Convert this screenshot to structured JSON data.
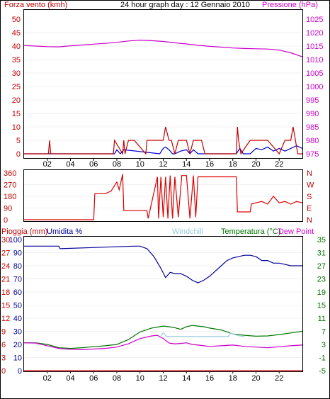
{
  "colors": {
    "background": "#ffffff",
    "border": "#000000",
    "grid": "#e4e4e4",
    "wind": "#c00000",
    "pressure": "#cc00cc",
    "direction": "#dd0000",
    "humidity": "#000099",
    "windchill": "#99ccdd",
    "temperature": "#007700",
    "dewpoint": "#cc00cc",
    "rain": "#cc0000",
    "gust": "#0000cc"
  },
  "header": {
    "wind_label": "Forza vento (kmh)",
    "title": "24 hour graph day : 12 Gennaio 2010",
    "pressure_label": "Pressione (hPa)"
  },
  "lower_header": {
    "rain_label": "Pioggia (mm)",
    "humidity_label": "Umidita %",
    "windchill_label": "Windchill",
    "temperature_label": "Temperatura (°C)",
    "dewpoint_label": "Dew Point"
  },
  "chart_data": [
    {
      "type": "line",
      "name": "wind-pressure",
      "x_ticks": [
        "02",
        "04",
        "06",
        "08",
        "10",
        "12",
        "14",
        "16",
        "18",
        "20",
        "22"
      ],
      "left_axis": {
        "label": "Forza vento (kmh)",
        "ticks": [
          "0",
          "5",
          "10",
          "15",
          "20",
          "25",
          "30",
          "35",
          "40",
          "45",
          "50"
        ],
        "ylim": [
          0,
          50
        ]
      },
      "right_axis": {
        "label": "Pressione (hPa)",
        "ticks": [
          "975",
          "980",
          "985",
          "990",
          "995",
          "1000",
          "1005",
          "1010",
          "1015",
          "1020",
          "1025"
        ],
        "ylim": [
          975,
          1025
        ]
      },
      "pressure": {
        "x": [
          0,
          1,
          2,
          3,
          4,
          5,
          6,
          7,
          8,
          9,
          10,
          11,
          12,
          13,
          14,
          15,
          16,
          17,
          18,
          19,
          20,
          21,
          22,
          23,
          24
        ],
        "y": [
          1015.2,
          1015.0,
          1014.8,
          1014.7,
          1015.1,
          1015.4,
          1015.7,
          1016.0,
          1016.4,
          1016.9,
          1017.2,
          1017.0,
          1016.7,
          1016.2,
          1015.8,
          1015.3,
          1014.9,
          1014.6,
          1014.3,
          1014.1,
          1014.0,
          1013.9,
          1013.5,
          1012.5,
          1011.0
        ]
      },
      "wind": {
        "x": [
          0,
          2.1,
          2.2,
          2.3,
          7.7,
          7.8,
          8.5,
          8.6,
          8.7,
          9,
          9.5,
          10.5,
          10.6,
          11.8,
          12,
          12.2,
          12.5,
          12.7,
          13,
          13.3,
          14,
          14.3,
          14.6,
          15,
          15.3,
          15.6,
          18.3,
          18.4,
          18.5,
          18.7,
          19.5,
          20,
          21,
          22,
          22.5,
          22.7,
          23,
          23.2,
          23.4,
          23.6,
          24
        ],
        "y": [
          0,
          0,
          5,
          0,
          0,
          5,
          0,
          5,
          0,
          5,
          5,
          0,
          5,
          5,
          5,
          10,
          5,
          5,
          0,
          5,
          5,
          0,
          5,
          5,
          5,
          0,
          0,
          10,
          5,
          0,
          5,
          5,
          5,
          0,
          5,
          5,
          5,
          10,
          5,
          0,
          0
        ]
      },
      "gust": {
        "x": [
          0,
          7.8,
          8,
          8.3,
          8.6,
          11.7,
          12,
          12.2,
          12.5,
          12.8,
          13,
          13.5,
          14,
          14.3,
          14.6,
          15,
          18.3,
          18.6,
          18.9,
          19.5,
          20,
          20.5,
          21,
          21.5,
          22,
          22.5,
          23,
          23.5,
          24
        ],
        "y": [
          0,
          0,
          1.5,
          0,
          1.5,
          0,
          2,
          2.5,
          1.5,
          0,
          0,
          1,
          1.5,
          0,
          1.5,
          0,
          0,
          2,
          0,
          0,
          2,
          1.5,
          2.5,
          1,
          2,
          1,
          2,
          3,
          2
        ]
      }
    },
    {
      "type": "line",
      "name": "wind-direction",
      "left_axis": {
        "ticks": [
          "0",
          "90",
          "180",
          "270",
          "360"
        ],
        "ylim": [
          0,
          360
        ]
      },
      "right_axis": {
        "ticks": [
          "N",
          "E",
          "S",
          "W",
          "N"
        ]
      },
      "direction": {
        "x": [
          0,
          6,
          6.1,
          7,
          7.5,
          8,
          8.2,
          8.5,
          8.6,
          10.6,
          10.7,
          11.5,
          11.6,
          11.8,
          12,
          12.2,
          12.4,
          12.6,
          12.8,
          13,
          13.3,
          13.6,
          14,
          14.3,
          14.6,
          14.8,
          15,
          15.2,
          18.3,
          18.4,
          18.6,
          19.5,
          19.6,
          20,
          20.5,
          21,
          21.5,
          22,
          22.5,
          23,
          23.5,
          24
        ],
        "y": [
          0,
          0,
          200,
          200,
          220,
          290,
          230,
          350,
          70,
          70,
          10,
          330,
          10,
          330,
          20,
          330,
          10,
          340,
          10,
          330,
          20,
          340,
          340,
          10,
          340,
          20,
          330,
          330,
          330,
          60,
          60,
          60,
          120,
          130,
          140,
          120,
          180,
          130,
          140,
          120,
          140,
          130
        ]
      }
    },
    {
      "type": "line",
      "name": "humidity-temperature",
      "x_ticks": [
        "02",
        "04",
        "06",
        "08",
        "10",
        "12",
        "14",
        "16",
        "18",
        "20",
        "22"
      ],
      "left_axis": {
        "label": "Umidita %",
        "ticks": [
          "0",
          "10",
          "20",
          "30",
          "40",
          "50",
          "60",
          "70",
          "80",
          "90",
          "100"
        ],
        "ylim": [
          0,
          100
        ]
      },
      "rain_axis": {
        "label": "Pioggia (mm)",
        "ticks": [
          "0",
          "3",
          "6",
          "9",
          "12",
          "15",
          "18",
          "21",
          "24",
          "27",
          "30"
        ],
        "ylim": [
          0,
          30
        ]
      },
      "right_axis": {
        "label": "Temperatura (°C)",
        "ticks": [
          "-5",
          "-1",
          "3",
          "7",
          "11",
          "15",
          "19",
          "23",
          "27",
          "31",
          "35"
        ],
        "ylim": [
          -5,
          35
        ]
      },
      "humidity": {
        "x": [
          0,
          3,
          3.1,
          9.5,
          10,
          10.6,
          11.2,
          11.8,
          12.2,
          12.6,
          13,
          13.5,
          14,
          14.5,
          15,
          15.5,
          16,
          16.5,
          17,
          17.5,
          18,
          18.5,
          19,
          19.5,
          20,
          20.5,
          21,
          21.5,
          22,
          22.5,
          23,
          24
        ],
        "y": [
          95,
          95,
          93,
          95,
          95,
          93,
          87,
          78,
          71,
          75,
          74,
          74,
          72,
          69,
          67,
          69,
          72,
          76,
          80,
          84,
          86,
          87,
          88,
          88,
          87,
          84,
          84,
          82,
          82,
          81,
          80,
          80
        ]
      },
      "temperature": {
        "x": [
          0,
          1,
          2,
          3,
          4,
          5,
          6,
          7,
          8,
          9,
          10,
          11,
          11.5,
          12,
          12.5,
          13,
          13.5,
          14,
          14.5,
          15,
          15.5,
          16,
          17,
          18,
          19,
          20,
          21,
          22,
          23,
          24
        ],
        "y": [
          3.5,
          3.5,
          3.0,
          2.0,
          1.8,
          2.0,
          2.3,
          2.6,
          3.0,
          4.5,
          6.8,
          8.0,
          8.3,
          8.6,
          8.4,
          8.1,
          7.6,
          8.4,
          8.8,
          8.6,
          8.4,
          8.0,
          7.4,
          6.2,
          5.8,
          5.5,
          5.6,
          6.0,
          6.5,
          7.0
        ]
      },
      "dewpoint": {
        "x": [
          0,
          1,
          2,
          3,
          4,
          5,
          6,
          7,
          8,
          9,
          10,
          11,
          11.5,
          12,
          12.5,
          13,
          13.5,
          14,
          14.5,
          15,
          15.5,
          16,
          17,
          18,
          19,
          20,
          21,
          22,
          23,
          24
        ],
        "y": [
          3.5,
          3.4,
          2.6,
          1.8,
          1.5,
          1.4,
          1.6,
          1.8,
          2.2,
          3.2,
          4.8,
          5.6,
          5.8,
          4.8,
          3.4,
          3.2,
          3.3,
          3.5,
          3.0,
          2.8,
          2.6,
          2.4,
          2.6,
          2.8,
          2.4,
          2.2,
          2.0,
          2.3,
          2.6,
          2.8
        ]
      },
      "windchill": {
        "x": [
          11.8,
          12,
          12.3,
          17.6,
          17.8,
          18.6,
          19
        ],
        "y": [
          5.6,
          6.6,
          5.4,
          5.4,
          6.4,
          5.6,
          5.4
        ]
      },
      "rain": {
        "x": [
          0,
          24
        ],
        "y": [
          0,
          0
        ]
      }
    }
  ]
}
